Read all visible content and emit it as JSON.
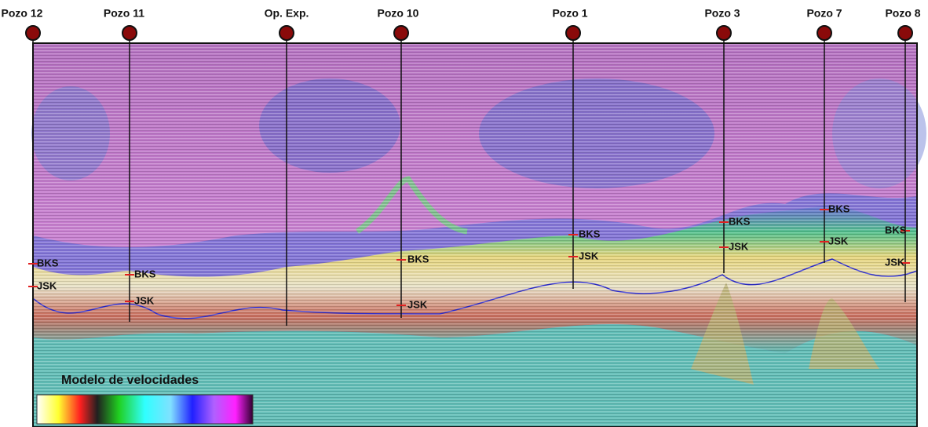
{
  "wells": [
    {
      "name": "Pozo 12",
      "horizons": [
        "BKS",
        "JSK"
      ]
    },
    {
      "name": "Pozo 11",
      "horizons": [
        "BKS",
        "JSK"
      ]
    },
    {
      "name": "Op. Exp.",
      "horizons": []
    },
    {
      "name": "Pozo 10",
      "horizons": [
        "BKS",
        "JSK"
      ]
    },
    {
      "name": "Pozo 1",
      "horizons": [
        "BKS",
        "JSK"
      ]
    },
    {
      "name": "Pozo 3",
      "horizons": [
        "BKS",
        "JSK"
      ]
    },
    {
      "name": "Pozo 7",
      "horizons": [
        "BKS",
        "JSK"
      ]
    },
    {
      "name": "Pozo 8",
      "horizons": [
        "BKS",
        "JSK"
      ]
    }
  ],
  "legend": {
    "title": "Modelo de velocidades"
  }
}
